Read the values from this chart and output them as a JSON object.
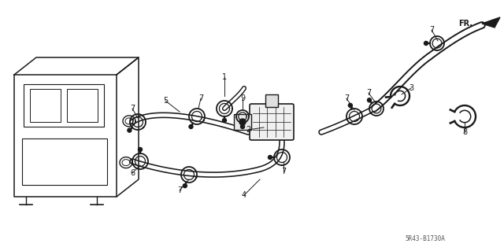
{
  "bg_color": "#ffffff",
  "line_color": "#1a1a1a",
  "diagram_code": "5R43-B1730A",
  "label_color": "#1a1a1a",
  "label_fs": 7.0,
  "hose_lw_outer": 5.5,
  "hose_lw_inner": 3.2
}
